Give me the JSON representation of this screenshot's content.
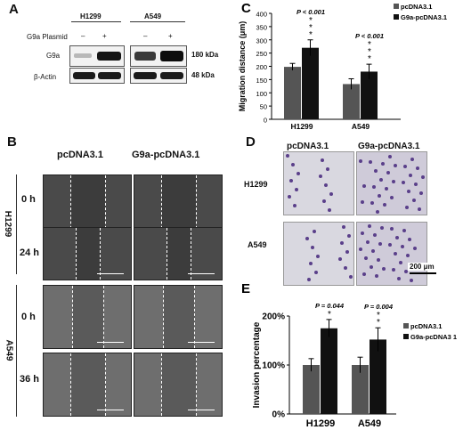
{
  "panel_a": {
    "letter": "A",
    "cell_lines": [
      "H1299",
      "A549"
    ],
    "plasmid_label": "G9a Plasmid",
    "lane_signs": [
      "–",
      "+",
      "–",
      "+"
    ],
    "rows": [
      {
        "protein": "G9a",
        "size": "180 kDa"
      },
      {
        "protein": "β-Actin",
        "size": "48 kDa"
      }
    ]
  },
  "panel_b": {
    "letter": "B",
    "conditions": [
      "pcDNA3.1",
      "G9a-pcDNA3.1"
    ],
    "cell_lines": [
      "H1299",
      "A549"
    ],
    "timepoints": [
      "0 h",
      "24 h",
      "0 h",
      "36 h"
    ]
  },
  "panel_d": {
    "letter": "D",
    "conditions": [
      "pcDNA3.1",
      "G9a-pcDNA3.1"
    ],
    "cell_lines": [
      "H1299",
      "A549"
    ],
    "scale_bar": "200 μm"
  },
  "chart_data": [
    {
      "panel": "C",
      "type": "bar",
      "categories": [
        "H1299",
        "A549"
      ],
      "series": [
        {
          "name": "pcDNA3.1",
          "values": [
            198,
            133
          ],
          "errors": [
            13,
            20
          ],
          "color": "#555555"
        },
        {
          "name": "G9a-pcDNA3.1",
          "values": [
            270,
            180
          ],
          "errors": [
            30,
            28
          ],
          "color": "#111111"
        }
      ],
      "ylabel": "Migration distance (μm)",
      "ylim": [
        0,
        400
      ],
      "yticks": [
        0,
        50,
        100,
        150,
        200,
        250,
        300,
        350,
        400
      ],
      "annotations": [
        {
          "category": "H1299",
          "text": "P < 0.001",
          "stars": "***"
        },
        {
          "category": "A549",
          "text": "P < 0.001",
          "stars": "***"
        }
      ],
      "legend": "top-right"
    },
    {
      "panel": "E",
      "type": "bar",
      "categories": [
        "H1299",
        "A549"
      ],
      "series": [
        {
          "name": "pcDNA3.1",
          "values": [
            100,
            100
          ],
          "errors": [
            13,
            16
          ],
          "color": "#555555"
        },
        {
          "name": "G9a-pcDNA3 1",
          "values": [
            175,
            152
          ],
          "errors": [
            18,
            24
          ],
          "color": "#111111"
        }
      ],
      "ylabel": "Invasion percentage",
      "ylim": [
        0,
        200
      ],
      "yticks": [
        "0%",
        "100%",
        "200%"
      ],
      "ytick_values": [
        0,
        100,
        200
      ],
      "annotations": [
        {
          "category": "H1299",
          "text": "P = 0.044",
          "stars": "*"
        },
        {
          "category": "A549",
          "text": "P = 0.004",
          "stars": "**"
        }
      ],
      "legend": "right"
    }
  ]
}
